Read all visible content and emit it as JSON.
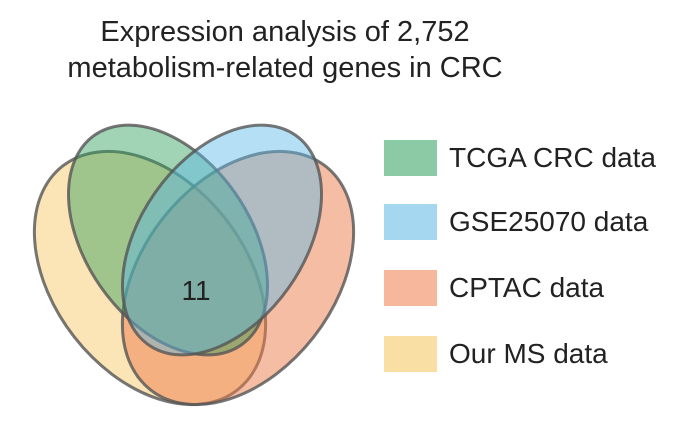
{
  "title": {
    "line1": "Expression analysis of 2,752",
    "line2": "metabolism-related genes in CRC"
  },
  "intersection_count": "11",
  "sets": [
    {
      "label": "TCGA CRC data",
      "color": "#2e9e5b"
    },
    {
      "label": "GSE25070 data",
      "color": "#5cb7e6"
    },
    {
      "label": "CPTAC data",
      "color": "#ee7c4c"
    },
    {
      "label": "Our MS data",
      "color": "#f6c45a"
    }
  ]
}
